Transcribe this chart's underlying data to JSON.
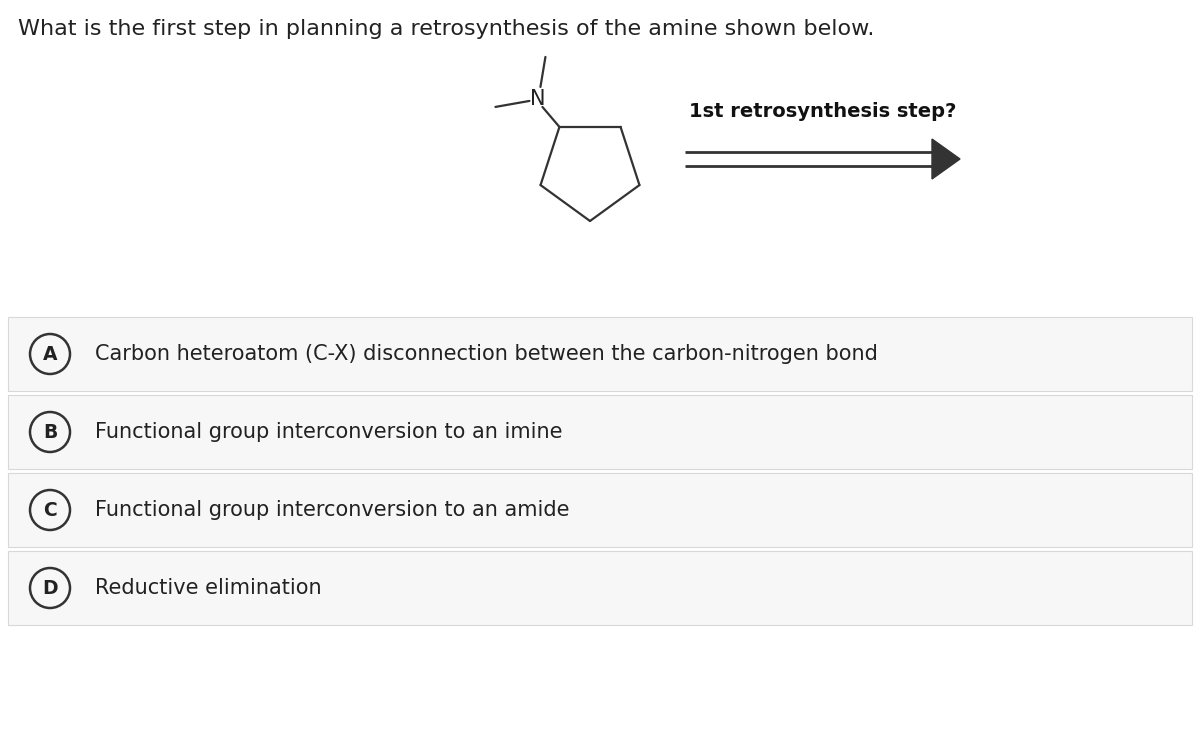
{
  "title": "What is the first step in planning a retrosynthesis of the amine shown below.",
  "background_color": "#ffffff",
  "options_bg_color": "#f7f7f7",
  "options_border_color": "#d8d8d8",
  "options": [
    {
      "letter": "A",
      "text": "Carbon heteroatom (C-X) disconnection between the carbon-nitrogen bond"
    },
    {
      "letter": "B",
      "text": "Functional group interconversion to an imine"
    },
    {
      "letter": "C",
      "text": "Functional group interconversion to an amide"
    },
    {
      "letter": "D",
      "text": "Reductive elimination"
    }
  ],
  "retro_label": "1st retrosynthesis step?",
  "text_color": "#222222",
  "option_fontsize": 15,
  "title_fontsize": 16
}
